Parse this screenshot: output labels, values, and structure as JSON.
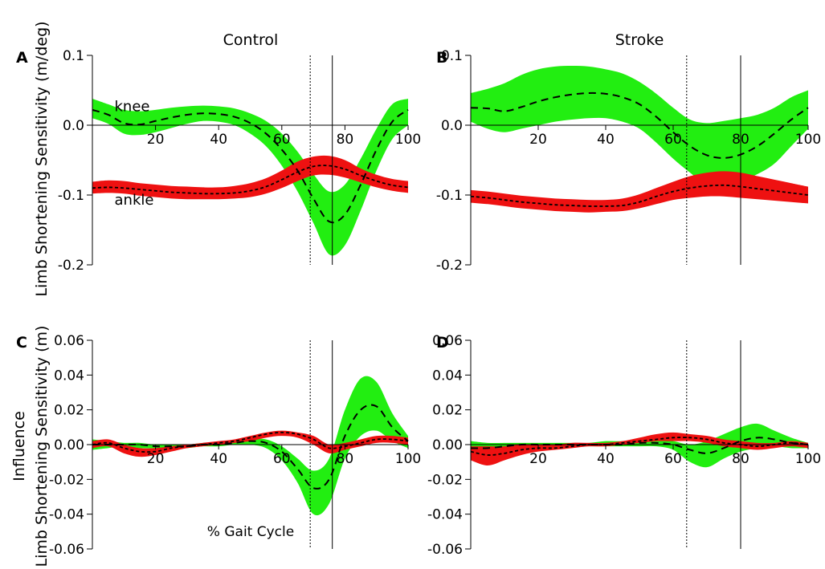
{
  "figure": {
    "ylabel_top": "Limb Shortening Sensitivity (m/deg)",
    "ylabel_bottom_line1": "Influence",
    "ylabel_bottom_line2": "Limb Shortening Sensitivity (m)",
    "xlabel": "% Gait Cycle",
    "colors": {
      "knee": "#22ee11",
      "ankle": "#ee1111",
      "mean": "#000000"
    }
  },
  "chart_data": [
    {
      "type": "area",
      "panel": "A",
      "title": "Control",
      "xlim": [
        0,
        100
      ],
      "ylim": [
        -0.2,
        0.1
      ],
      "xticks": [
        "20",
        "40",
        "60",
        "80",
        "100"
      ],
      "yticks": [
        "0.1",
        "0.0",
        "-0.1",
        "-0.2"
      ],
      "ytick_values": [
        0.1,
        0.0,
        -0.1,
        -0.2
      ],
      "vlines": [
        {
          "x": 69,
          "style": "dotted"
        },
        {
          "x": 76,
          "style": "solid"
        }
      ],
      "series": [
        {
          "name": "knee",
          "color": "#22ee11",
          "dash": "long",
          "x": [
            0,
            5,
            10,
            15,
            20,
            25,
            30,
            35,
            40,
            45,
            50,
            55,
            60,
            65,
            70,
            75,
            80,
            85,
            90,
            95,
            100
          ],
          "mean": [
            0.022,
            0.015,
            0.003,
            0.001,
            0.006,
            0.011,
            0.015,
            0.017,
            0.016,
            0.012,
            0.003,
            -0.012,
            -0.035,
            -0.065,
            -0.105,
            -0.138,
            -0.128,
            -0.085,
            -0.035,
            0.005,
            0.022
          ],
          "upper": [
            0.038,
            0.03,
            0.022,
            0.02,
            0.022,
            0.025,
            0.027,
            0.028,
            0.027,
            0.024,
            0.017,
            0.006,
            -0.012,
            -0.038,
            -0.07,
            -0.095,
            -0.085,
            -0.048,
            -0.005,
            0.03,
            0.038
          ],
          "lower": [
            0.01,
            0.002,
            -0.012,
            -0.014,
            -0.01,
            -0.004,
            0.002,
            0.006,
            0.005,
            0.0,
            -0.012,
            -0.03,
            -0.058,
            -0.095,
            -0.14,
            -0.185,
            -0.172,
            -0.122,
            -0.065,
            -0.02,
            0.0
          ]
        },
        {
          "name": "ankle",
          "color": "#ee1111",
          "dash": "short",
          "x": [
            0,
            5,
            10,
            15,
            20,
            25,
            30,
            35,
            40,
            45,
            50,
            55,
            60,
            65,
            70,
            75,
            80,
            85,
            90,
            95,
            100
          ],
          "mean": [
            -0.09,
            -0.089,
            -0.09,
            -0.092,
            -0.094,
            -0.096,
            -0.097,
            -0.098,
            -0.098,
            -0.097,
            -0.094,
            -0.088,
            -0.078,
            -0.067,
            -0.059,
            -0.058,
            -0.063,
            -0.072,
            -0.08,
            -0.086,
            -0.089
          ],
          "upper": [
            -0.081,
            -0.079,
            -0.08,
            -0.083,
            -0.085,
            -0.087,
            -0.088,
            -0.089,
            -0.089,
            -0.087,
            -0.083,
            -0.076,
            -0.065,
            -0.052,
            -0.045,
            -0.044,
            -0.05,
            -0.062,
            -0.071,
            -0.077,
            -0.08
          ],
          "lower": [
            -0.098,
            -0.097,
            -0.098,
            -0.101,
            -0.103,
            -0.105,
            -0.106,
            -0.106,
            -0.106,
            -0.105,
            -0.103,
            -0.098,
            -0.09,
            -0.08,
            -0.072,
            -0.071,
            -0.075,
            -0.082,
            -0.089,
            -0.094,
            -0.097
          ]
        }
      ],
      "series_labels": [
        {
          "text": "knee",
          "x": 7,
          "y": 0.02
        },
        {
          "text": "ankle",
          "x": 7,
          "y": -0.114
        }
      ]
    },
    {
      "type": "area",
      "panel": "B",
      "title": "Stroke",
      "xlim": [
        0,
        100
      ],
      "ylim": [
        -0.2,
        0.1
      ],
      "xticks": [
        "20",
        "40",
        "60",
        "80",
        "100"
      ],
      "yticks": [
        "0.1",
        "0.0",
        "-0.1",
        "-0.2"
      ],
      "ytick_values": [
        0.1,
        0.0,
        -0.1,
        -0.2
      ],
      "vlines": [
        {
          "x": 64,
          "style": "dotted"
        },
        {
          "x": 80,
          "style": "solid"
        }
      ],
      "series": [
        {
          "name": "knee",
          "color": "#22ee11",
          "dash": "long",
          "x": [
            0,
            5,
            10,
            15,
            20,
            25,
            30,
            35,
            40,
            45,
            50,
            55,
            60,
            65,
            70,
            75,
            80,
            85,
            90,
            95,
            100
          ],
          "mean": [
            0.025,
            0.024,
            0.02,
            0.026,
            0.034,
            0.04,
            0.044,
            0.046,
            0.045,
            0.04,
            0.03,
            0.012,
            -0.01,
            -0.03,
            -0.043,
            -0.047,
            -0.042,
            -0.03,
            -0.012,
            0.008,
            0.025
          ],
          "upper": [
            0.046,
            0.052,
            0.06,
            0.072,
            0.08,
            0.084,
            0.085,
            0.084,
            0.08,
            0.074,
            0.062,
            0.045,
            0.025,
            0.008,
            0.003,
            0.006,
            0.01,
            0.015,
            0.025,
            0.04,
            0.05
          ],
          "lower": [
            0.005,
            -0.005,
            -0.01,
            -0.005,
            0.0,
            0.005,
            0.008,
            0.01,
            0.01,
            0.005,
            -0.005,
            -0.025,
            -0.048,
            -0.068,
            -0.085,
            -0.085,
            -0.08,
            -0.07,
            -0.055,
            -0.03,
            -0.005
          ]
        },
        {
          "name": "ankle",
          "color": "#ee1111",
          "dash": "short",
          "x": [
            0,
            5,
            10,
            15,
            20,
            25,
            30,
            35,
            40,
            45,
            50,
            55,
            60,
            65,
            70,
            75,
            80,
            85,
            90,
            95,
            100
          ],
          "mean": [
            -0.102,
            -0.104,
            -0.107,
            -0.11,
            -0.112,
            -0.114,
            -0.115,
            -0.116,
            -0.116,
            -0.115,
            -0.11,
            -0.102,
            -0.095,
            -0.09,
            -0.087,
            -0.086,
            -0.088,
            -0.091,
            -0.094,
            -0.097,
            -0.1
          ],
          "upper": [
            -0.093,
            -0.095,
            -0.098,
            -0.101,
            -0.103,
            -0.105,
            -0.106,
            -0.107,
            -0.107,
            -0.105,
            -0.099,
            -0.09,
            -0.081,
            -0.073,
            -0.068,
            -0.066,
            -0.068,
            -0.073,
            -0.078,
            -0.083,
            -0.088
          ],
          "lower": [
            -0.111,
            -0.113,
            -0.116,
            -0.119,
            -0.121,
            -0.123,
            -0.124,
            -0.125,
            -0.124,
            -0.123,
            -0.119,
            -0.113,
            -0.107,
            -0.104,
            -0.102,
            -0.102,
            -0.104,
            -0.106,
            -0.108,
            -0.11,
            -0.112
          ]
        }
      ],
      "series_labels": []
    },
    {
      "type": "area",
      "panel": "C",
      "title": "",
      "xlim": [
        0,
        100
      ],
      "ylim": [
        -0.06,
        0.06
      ],
      "xticks": [
        "20",
        "40",
        "60",
        "80",
        "100"
      ],
      "yticks": [
        "0.06",
        "0.04",
        "0.02",
        "0.00",
        "-0.02",
        "-0.04",
        "-0.06"
      ],
      "ytick_values": [
        0.06,
        0.04,
        0.02,
        0.0,
        -0.02,
        -0.04,
        -0.06
      ],
      "vlines": [
        {
          "x": 69,
          "style": "dotted"
        },
        {
          "x": 76,
          "style": "solid"
        }
      ],
      "series": [
        {
          "name": "knee",
          "color": "#22ee11",
          "dash": "long",
          "x": [
            0,
            5,
            10,
            15,
            20,
            25,
            30,
            35,
            40,
            45,
            50,
            55,
            60,
            65,
            70,
            75,
            80,
            85,
            90,
            95,
            100
          ],
          "mean": [
            0.0,
            0.0,
            0.0,
            0.0,
            -0.001,
            -0.001,
            -0.001,
            0.0,
            0.0,
            0.001,
            0.002,
            0.001,
            -0.004,
            -0.014,
            -0.025,
            -0.02,
            0.005,
            0.02,
            0.022,
            0.01,
            0.002
          ],
          "upper": [
            0.003,
            0.002,
            0.001,
            0.001,
            0.0,
            0.0,
            0.0,
            0.001,
            0.001,
            0.002,
            0.003,
            0.003,
            -0.001,
            -0.008,
            -0.015,
            -0.008,
            0.02,
            0.038,
            0.036,
            0.018,
            0.005
          ],
          "lower": [
            -0.003,
            -0.002,
            -0.001,
            -0.002,
            -0.002,
            -0.002,
            -0.002,
            -0.001,
            -0.001,
            0.0,
            0.0,
            -0.002,
            -0.009,
            -0.022,
            -0.04,
            -0.034,
            -0.008,
            0.005,
            0.008,
            0.002,
            -0.002
          ]
        },
        {
          "name": "ankle",
          "color": "#ee1111",
          "dash": "short",
          "x": [
            0,
            5,
            10,
            15,
            20,
            25,
            30,
            35,
            40,
            45,
            50,
            55,
            60,
            65,
            70,
            75,
            80,
            85,
            90,
            95,
            100
          ],
          "mean": [
            0.0,
            0.001,
            -0.002,
            -0.004,
            -0.004,
            -0.002,
            -0.001,
            0.0,
            0.001,
            0.002,
            0.004,
            0.006,
            0.007,
            0.006,
            0.003,
            -0.002,
            -0.001,
            0.001,
            0.003,
            0.003,
            0.002
          ],
          "upper": [
            0.002,
            0.003,
            0.0,
            -0.002,
            -0.002,
            -0.001,
            0.0,
            0.001,
            0.002,
            0.003,
            0.005,
            0.007,
            0.008,
            0.007,
            0.005,
            0.0,
            0.001,
            0.003,
            0.005,
            0.005,
            0.004
          ],
          "lower": [
            -0.002,
            -0.001,
            -0.005,
            -0.007,
            -0.006,
            -0.004,
            -0.002,
            -0.001,
            0.0,
            0.001,
            0.002,
            0.004,
            0.005,
            0.004,
            0.0,
            -0.005,
            -0.003,
            -0.001,
            0.001,
            0.001,
            0.0
          ]
        }
      ],
      "series_labels": []
    },
    {
      "type": "area",
      "panel": "D",
      "title": "",
      "xlim": [
        0,
        100
      ],
      "ylim": [
        -0.06,
        0.06
      ],
      "xticks": [
        "20",
        "40",
        "60",
        "80",
        "100"
      ],
      "yticks": [
        "0.06",
        "0.04",
        "0.02",
        "0.00",
        "-0.02",
        "-0.04",
        "-0.06"
      ],
      "ytick_values": [
        0.06,
        0.04,
        0.02,
        0.0,
        -0.02,
        -0.04,
        -0.06
      ],
      "vlines": [
        {
          "x": 64,
          "style": "dotted"
        },
        {
          "x": 80,
          "style": "solid"
        }
      ],
      "series": [
        {
          "name": "knee",
          "color": "#22ee11",
          "dash": "long",
          "x": [
            0,
            5,
            10,
            15,
            20,
            25,
            30,
            35,
            40,
            45,
            50,
            55,
            60,
            65,
            70,
            75,
            80,
            85,
            90,
            95,
            100
          ],
          "mean": [
            -0.002,
            -0.002,
            -0.001,
            0.0,
            0.0,
            0.0,
            0.0,
            0.0,
            0.0,
            0.0,
            0.001,
            0.001,
            0.0,
            -0.003,
            -0.005,
            -0.002,
            0.002,
            0.004,
            0.003,
            0.001,
            0.0
          ],
          "upper": [
            0.002,
            0.001,
            0.001,
            0.001,
            0.001,
            0.001,
            0.001,
            0.001,
            0.002,
            0.002,
            0.003,
            0.003,
            0.002,
            0.0,
            0.002,
            0.006,
            0.01,
            0.012,
            0.008,
            0.004,
            0.001
          ],
          "lower": [
            -0.004,
            -0.004,
            -0.003,
            -0.002,
            -0.001,
            -0.001,
            -0.001,
            -0.001,
            -0.001,
            -0.001,
            -0.001,
            -0.001,
            -0.003,
            -0.01,
            -0.013,
            -0.008,
            -0.004,
            -0.002,
            -0.001,
            -0.002,
            -0.002
          ]
        },
        {
          "name": "ankle",
          "color": "#ee1111",
          "dash": "short",
          "x": [
            0,
            5,
            10,
            15,
            20,
            25,
            30,
            35,
            40,
            45,
            50,
            55,
            60,
            65,
            70,
            75,
            80,
            85,
            90,
            95,
            100
          ],
          "mean": [
            -0.004,
            -0.006,
            -0.005,
            -0.003,
            -0.002,
            -0.002,
            -0.001,
            0.0,
            0.0,
            0.001,
            0.002,
            0.003,
            0.004,
            0.004,
            0.003,
            0.001,
            0.0,
            -0.001,
            0.0,
            0.001,
            0.0
          ],
          "upper": [
            -0.001,
            -0.001,
            -0.001,
            0.0,
            0.0,
            0.0,
            0.001,
            0.001,
            0.001,
            0.002,
            0.004,
            0.006,
            0.007,
            0.006,
            0.005,
            0.003,
            0.002,
            0.001,
            0.001,
            0.002,
            0.001
          ],
          "lower": [
            -0.009,
            -0.012,
            -0.009,
            -0.006,
            -0.004,
            -0.003,
            -0.002,
            -0.001,
            -0.001,
            0.0,
            0.001,
            0.002,
            0.002,
            0.002,
            0.001,
            -0.001,
            -0.002,
            -0.003,
            -0.002,
            -0.001,
            -0.002
          ]
        }
      ],
      "series_labels": []
    }
  ]
}
